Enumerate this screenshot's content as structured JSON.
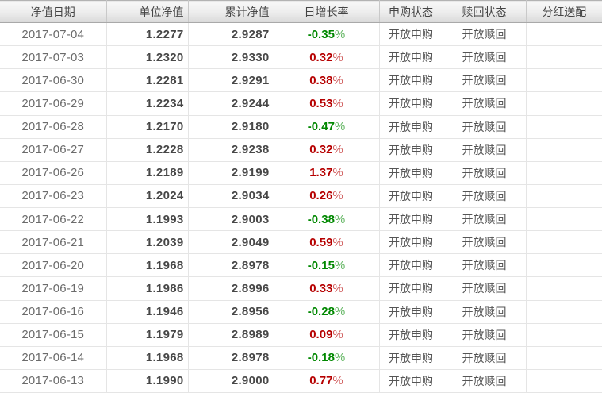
{
  "colors": {
    "positive": "#b60000",
    "negative": "#008800",
    "header-text": "#444444",
    "row-border": "#e5e5e5"
  },
  "table": {
    "columns": [
      {
        "key": "date",
        "label": "净值日期"
      },
      {
        "key": "nav",
        "label": "单位净值"
      },
      {
        "key": "acc_nav",
        "label": "累计净值"
      },
      {
        "key": "growth",
        "label": "日增长率"
      },
      {
        "key": "purchase",
        "label": "申购状态"
      },
      {
        "key": "redeem",
        "label": "赎回状态"
      },
      {
        "key": "dividend",
        "label": "分红送配"
      }
    ],
    "rows": [
      {
        "date": "2017-07-04",
        "nav": "1.2277",
        "acc_nav": "2.9287",
        "growth": "-0.35",
        "purchase": "开放申购",
        "redeem": "开放赎回",
        "dividend": ""
      },
      {
        "date": "2017-07-03",
        "nav": "1.2320",
        "acc_nav": "2.9330",
        "growth": "0.32",
        "purchase": "开放申购",
        "redeem": "开放赎回",
        "dividend": ""
      },
      {
        "date": "2017-06-30",
        "nav": "1.2281",
        "acc_nav": "2.9291",
        "growth": "0.38",
        "purchase": "开放申购",
        "redeem": "开放赎回",
        "dividend": ""
      },
      {
        "date": "2017-06-29",
        "nav": "1.2234",
        "acc_nav": "2.9244",
        "growth": "0.53",
        "purchase": "开放申购",
        "redeem": "开放赎回",
        "dividend": ""
      },
      {
        "date": "2017-06-28",
        "nav": "1.2170",
        "acc_nav": "2.9180",
        "growth": "-0.47",
        "purchase": "开放申购",
        "redeem": "开放赎回",
        "dividend": ""
      },
      {
        "date": "2017-06-27",
        "nav": "1.2228",
        "acc_nav": "2.9238",
        "growth": "0.32",
        "purchase": "开放申购",
        "redeem": "开放赎回",
        "dividend": ""
      },
      {
        "date": "2017-06-26",
        "nav": "1.2189",
        "acc_nav": "2.9199",
        "growth": "1.37",
        "purchase": "开放申购",
        "redeem": "开放赎回",
        "dividend": ""
      },
      {
        "date": "2017-06-23",
        "nav": "1.2024",
        "acc_nav": "2.9034",
        "growth": "0.26",
        "purchase": "开放申购",
        "redeem": "开放赎回",
        "dividend": ""
      },
      {
        "date": "2017-06-22",
        "nav": "1.1993",
        "acc_nav": "2.9003",
        "growth": "-0.38",
        "purchase": "开放申购",
        "redeem": "开放赎回",
        "dividend": ""
      },
      {
        "date": "2017-06-21",
        "nav": "1.2039",
        "acc_nav": "2.9049",
        "growth": "0.59",
        "purchase": "开放申购",
        "redeem": "开放赎回",
        "dividend": ""
      },
      {
        "date": "2017-06-20",
        "nav": "1.1968",
        "acc_nav": "2.8978",
        "growth": "-0.15",
        "purchase": "开放申购",
        "redeem": "开放赎回",
        "dividend": ""
      },
      {
        "date": "2017-06-19",
        "nav": "1.1986",
        "acc_nav": "2.8996",
        "growth": "0.33",
        "purchase": "开放申购",
        "redeem": "开放赎回",
        "dividend": ""
      },
      {
        "date": "2017-06-16",
        "nav": "1.1946",
        "acc_nav": "2.8956",
        "growth": "-0.28",
        "purchase": "开放申购",
        "redeem": "开放赎回",
        "dividend": ""
      },
      {
        "date": "2017-06-15",
        "nav": "1.1979",
        "acc_nav": "2.8989",
        "growth": "0.09",
        "purchase": "开放申购",
        "redeem": "开放赎回",
        "dividend": ""
      },
      {
        "date": "2017-06-14",
        "nav": "1.1968",
        "acc_nav": "2.8978",
        "growth": "-0.18",
        "purchase": "开放申购",
        "redeem": "开放赎回",
        "dividend": ""
      },
      {
        "date": "2017-06-13",
        "nav": "1.1990",
        "acc_nav": "2.9000",
        "growth": "0.77",
        "purchase": "开放申购",
        "redeem": "开放赎回",
        "dividend": ""
      }
    ],
    "percent_suffix": "%"
  }
}
